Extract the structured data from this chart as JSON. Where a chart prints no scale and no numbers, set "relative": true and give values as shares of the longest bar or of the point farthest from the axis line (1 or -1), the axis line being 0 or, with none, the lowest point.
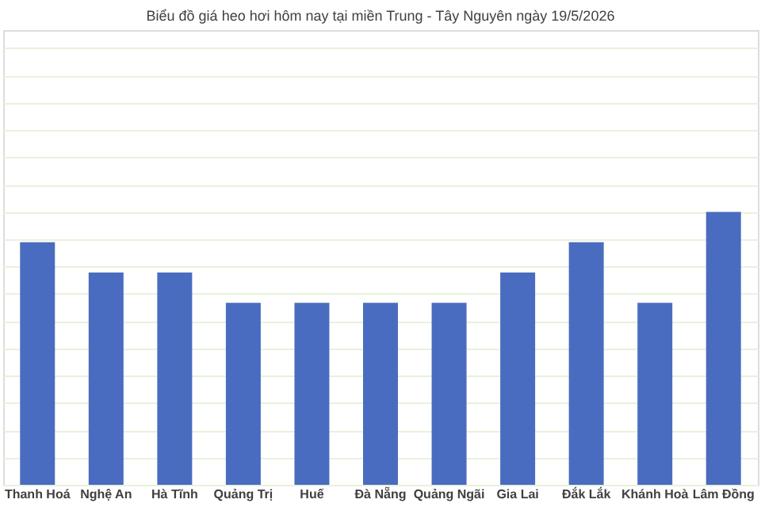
{
  "chart_data": {
    "type": "bar",
    "title": "Biểu đồ giá heo hơi hôm nay tại miền Trung - Tây Nguyên ngày 19/5/2026",
    "categories": [
      "Thanh Hoá",
      "Nghệ An",
      "Hà Tĩnh",
      "Quảng Trị",
      "Huế",
      "Đà Nẵng",
      "Quảng Ngãi",
      "Gia Lai",
      "Đắk Lắk",
      "Khánh Hoà",
      "Lâm Đồng"
    ],
    "values": [
      0.889,
      0.778,
      0.778,
      0.667,
      0.667,
      0.667,
      0.667,
      0.778,
      0.889,
      0.667,
      1
    ],
    "color": "#4a6cc0",
    "relative": true,
    "grid": "y"
  }
}
